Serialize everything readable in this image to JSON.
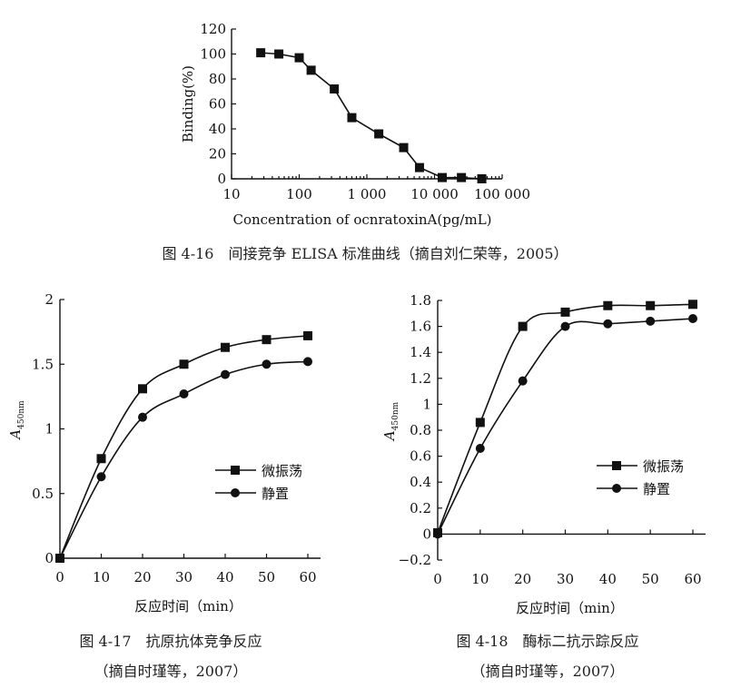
{
  "captions": {
    "fig16": "图 4-16　间接竞争 ELISA 标准曲线（摘自刘仁荣等，2005）",
    "fig17_line1": "图 4-17　抗原抗体竞争反应",
    "fig17_line2": "（摘自时瑾等，2007）",
    "fig18_line1": "图 4-18　酶标二抗示踪反应",
    "fig18_line2": "（摘自时瑾等，2007）"
  },
  "chart_data": [
    {
      "type": "line",
      "xlabel": "Concentration of ocnratoxinA(pg/mL)",
      "ylabel": "Binding(%)",
      "xscale": "log",
      "xlim": [
        10,
        100000
      ],
      "ylim": [
        0,
        120
      ],
      "xticks": [
        "10",
        "100",
        "1 000",
        "10 000",
        "100 000"
      ],
      "yticks": [
        "0",
        "20",
        "40",
        "60",
        "80",
        "100",
        "120"
      ],
      "series": [
        {
          "marker": "square",
          "x": [
            27,
            50,
            100,
            150,
            330,
            600,
            1500,
            3500,
            6000,
            13000,
            25000,
            50000
          ],
          "y": [
            101,
            100,
            97,
            87,
            72,
            49,
            36,
            25,
            9,
            1,
            1,
            0
          ]
        }
      ]
    },
    {
      "type": "line",
      "xlabel": "反应时间（min）",
      "ylabel": "A450nm",
      "xlim": [
        0,
        60
      ],
      "ylim": [
        0,
        2
      ],
      "xticks": [
        "0",
        "10",
        "20",
        "30",
        "40",
        "50",
        "60"
      ],
      "yticks": [
        "0",
        "0.5",
        "1",
        "1.5",
        "2"
      ],
      "legend": "right-middle",
      "series": [
        {
          "name": "微振荡",
          "marker": "square",
          "x": [
            0,
            10,
            20,
            30,
            40,
            50,
            60
          ],
          "y": [
            0,
            0.77,
            1.31,
            1.5,
            1.63,
            1.69,
            1.72
          ]
        },
        {
          "name": "静置",
          "marker": "circle",
          "x": [
            0,
            10,
            20,
            30,
            40,
            50,
            60
          ],
          "y": [
            0,
            0.63,
            1.09,
            1.27,
            1.42,
            1.5,
            1.52
          ]
        }
      ]
    },
    {
      "type": "line",
      "xlabel": "反应时间（min）",
      "ylabel": "A450nm",
      "xlim": [
        0,
        60
      ],
      "ylim": [
        -0.2,
        1.8
      ],
      "xticks": [
        "0",
        "10",
        "20",
        "30",
        "40",
        "50",
        "60"
      ],
      "yticks": [
        "-0.2",
        "0",
        "0.2",
        "0.4",
        "0.6",
        "0.8",
        "1",
        "1.2",
        "1.4",
        "1.6",
        "1.8"
      ],
      "legend": "right-middle",
      "series": [
        {
          "name": "微振荡",
          "marker": "square",
          "x": [
            0,
            10,
            20,
            30,
            40,
            50,
            60
          ],
          "y": [
            0.01,
            0.86,
            1.6,
            1.71,
            1.76,
            1.76,
            1.77
          ]
        },
        {
          "name": "静置",
          "marker": "circle",
          "x": [
            0,
            10,
            20,
            30,
            40,
            50,
            60
          ],
          "y": [
            0,
            0.66,
            1.18,
            1.6,
            1.62,
            1.64,
            1.66
          ]
        }
      ]
    }
  ]
}
